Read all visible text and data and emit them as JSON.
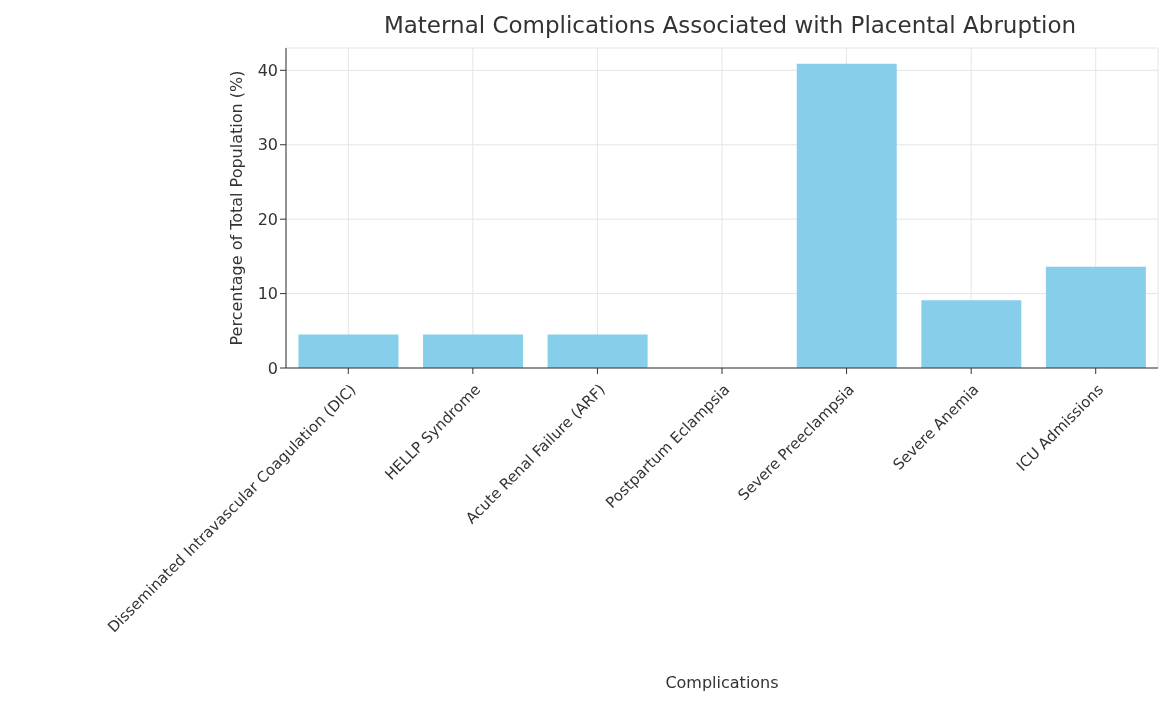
{
  "chart_data": {
    "type": "bar",
    "title": "Maternal Complications Associated with Placental Abruption",
    "xlabel": "Complications",
    "ylabel": "Percentage of Total Population (%)",
    "categories": [
      "Disseminated Intravascular Coagulation (DIC)",
      "HELLP Syndrome",
      "Acute Renal Failure (ARF)",
      "Postpartum Eclampsia",
      "Severe Preeclampsia",
      "Severe Anemia",
      "ICU Admissions"
    ],
    "values": [
      4.5,
      4.5,
      4.5,
      0,
      40.9,
      9.1,
      13.6
    ],
    "color": "#87ceeb",
    "ylim": [
      0,
      43
    ],
    "yticks": [
      0,
      10,
      20,
      30,
      40
    ],
    "grid": true
  }
}
